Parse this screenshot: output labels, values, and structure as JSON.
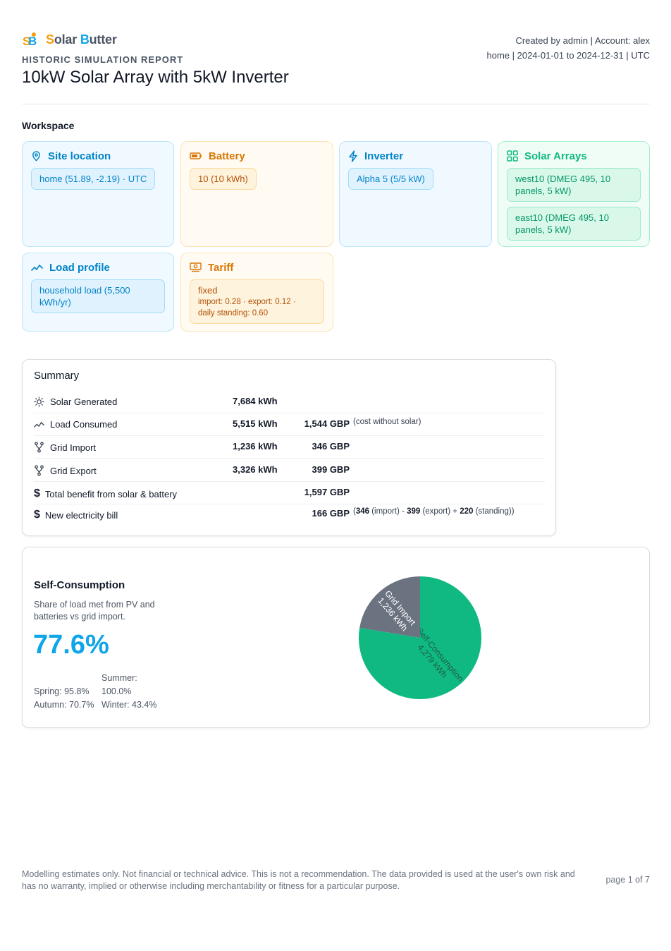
{
  "brand": {
    "name_s": "S",
    "name_mid1": "olar ",
    "name_b": "B",
    "name_mid2": "utter"
  },
  "header": {
    "kicker": "HISTORIC SIMULATION REPORT",
    "title": "10kW Solar Array with 5kW Inverter",
    "meta_line1": "Created by admin | Account: alex",
    "meta_line2": "home | 2024-01-01 to 2024-12-31 | UTC"
  },
  "workspace": {
    "title": "Workspace",
    "site": {
      "label": "Site location",
      "items": [
        "home (51.89, -2.19) · UTC"
      ]
    },
    "battery": {
      "label": "Battery",
      "items": [
        "10 (10 kWh)"
      ]
    },
    "inverter": {
      "label": "Inverter",
      "items": [
        "Alpha 5 (5/5 kW)"
      ]
    },
    "arrays": {
      "label": "Solar Arrays",
      "items": [
        "west10 (DMEG 495, 10 panels, 5 kW)",
        "east10 (DMEG 495, 10 panels, 5 kW)"
      ]
    },
    "load": {
      "label": "Load profile",
      "items": [
        "household load (5,500 kWh/yr)"
      ]
    },
    "tariff": {
      "label": "Tariff",
      "name": "fixed",
      "detail1": "import: 0.28 · export: 0.12 ·",
      "detail2": "daily standing: 0.60"
    }
  },
  "summary": {
    "title": "Summary",
    "rows": [
      {
        "label": "Solar Generated",
        "kwh": "7,684 kWh",
        "gbp": "",
        "note": ""
      },
      {
        "label": "Load Consumed",
        "kwh": "5,515 kWh",
        "gbp": "1,544 GBP",
        "note": "(cost without solar)"
      },
      {
        "label": "Grid Import",
        "kwh": "1,236 kWh",
        "gbp": "346 GBP",
        "note": ""
      },
      {
        "label": "Grid Export",
        "kwh": "3,326 kWh",
        "gbp": "399 GBP",
        "note": ""
      },
      {
        "label": "Total benefit from solar & battery",
        "kwh": "",
        "gbp": "1,597 GBP",
        "note": ""
      },
      {
        "label": "New electricity bill",
        "kwh": "",
        "gbp": "166 GBP",
        "note": ""
      }
    ],
    "dollar": "$",
    "bill_note": {
      "open": "(",
      "import_val": "346",
      "import_lbl": " (import) - ",
      "export_val": "399",
      "export_lbl": " (export) + ",
      "standing_val": "220",
      "standing_lbl": " (standing))"
    }
  },
  "self_consumption": {
    "title": "Self-Consumption",
    "description": "Share of load met from PV and batteries vs grid import.",
    "percent": "77.6%",
    "spring": "Spring: 95.8%",
    "summer": "Summer: 100.0%",
    "autumn": "Autumn: 70.7%",
    "winter": "Winter: 43.4%"
  },
  "chart_data": {
    "type": "pie",
    "slices": [
      {
        "label": "Self-Consumption",
        "value": 4279,
        "value_label": "4,279 kWh",
        "color": "#10b981"
      },
      {
        "label": "Grid Import",
        "value": 1236,
        "value_label": "1,236 kWh",
        "color": "#6b7280"
      }
    ]
  },
  "footer": {
    "disclaimer": "Modelling estimates only. Not financial or technical advice. This is not a recommendation. The data provided is used at the user's own risk and has no warranty, implied or otherwise including merchantability or fitness for a particular purpose.",
    "page": "page 1 of 7"
  }
}
